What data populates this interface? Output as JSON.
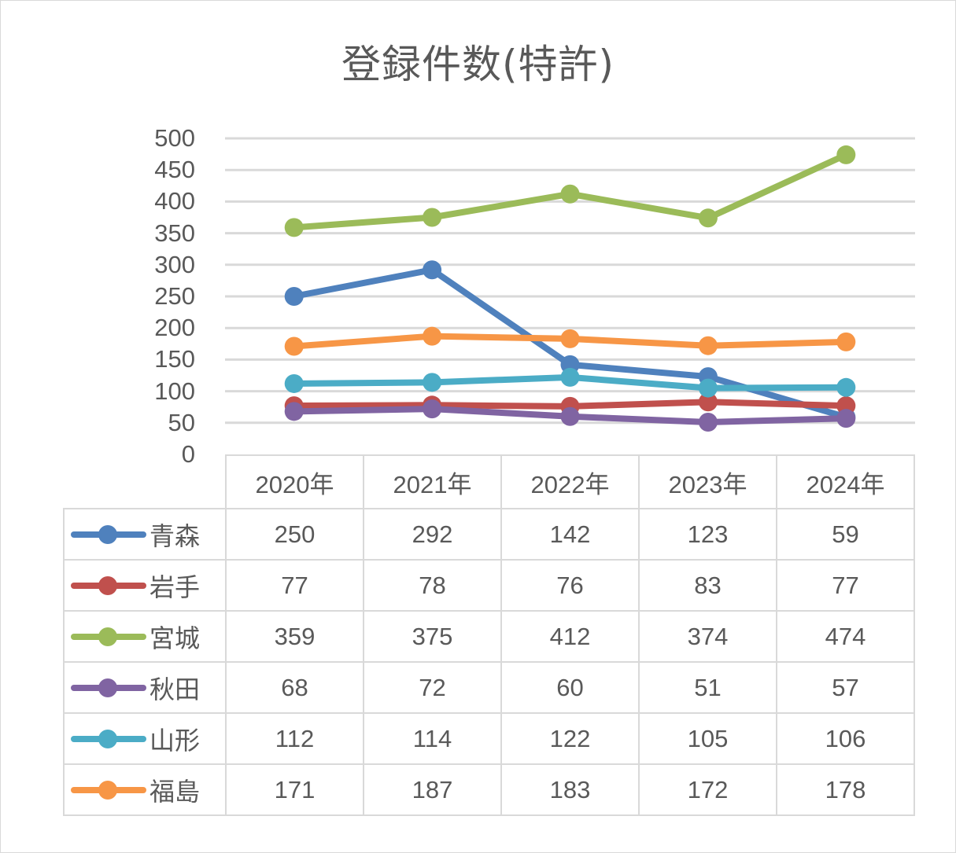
{
  "title": "登録件数(特許)",
  "y_axis": {
    "ticks": [
      "500",
      "450",
      "400",
      "350",
      "300",
      "250",
      "200",
      "150",
      "100",
      "50",
      "0"
    ]
  },
  "x_axis": {
    "categories": [
      "2020年",
      "2021年",
      "2022年",
      "2023年",
      "2024年"
    ]
  },
  "series": [
    {
      "name": "青森",
      "color": "#4f81bd",
      "values": [
        "250",
        "292",
        "142",
        "123",
        "59"
      ]
    },
    {
      "name": "岩手",
      "color": "#c0504d",
      "values": [
        "77",
        "78",
        "76",
        "83",
        "77"
      ]
    },
    {
      "name": "宮城",
      "color": "#9bbb59",
      "values": [
        "359",
        "375",
        "412",
        "374",
        "474"
      ]
    },
    {
      "name": "秋田",
      "color": "#8064a2",
      "values": [
        "68",
        "72",
        "60",
        "51",
        "57"
      ]
    },
    {
      "name": "山形",
      "color": "#4bacc6",
      "values": [
        "112",
        "114",
        "122",
        "105",
        "106"
      ]
    },
    {
      "name": "福島",
      "color": "#f79646",
      "values": [
        "171",
        "187",
        "183",
        "172",
        "178"
      ]
    }
  ],
  "chart_data": {
    "type": "line",
    "title": "登録件数(特許)",
    "xlabel": "",
    "ylabel": "",
    "ylim": [
      0,
      500
    ],
    "yticks": [
      0,
      50,
      100,
      150,
      200,
      250,
      300,
      350,
      400,
      450,
      500
    ],
    "grid": true,
    "legend_position": "data-table (bottom)",
    "categories": [
      "2020年",
      "2021年",
      "2022年",
      "2023年",
      "2024年"
    ],
    "series": [
      {
        "name": "青森",
        "color": "#4f81bd",
        "values": [
          250,
          292,
          142,
          123,
          59
        ]
      },
      {
        "name": "岩手",
        "color": "#c0504d",
        "values": [
          77,
          78,
          76,
          83,
          77
        ]
      },
      {
        "name": "宮城",
        "color": "#9bbb59",
        "values": [
          359,
          375,
          412,
          374,
          474
        ]
      },
      {
        "name": "秋田",
        "color": "#8064a2",
        "values": [
          68,
          72,
          60,
          51,
          57
        ]
      },
      {
        "name": "山形",
        "color": "#4bacc6",
        "values": [
          112,
          114,
          122,
          105,
          106
        ]
      },
      {
        "name": "福島",
        "color": "#f79646",
        "values": [
          171,
          187,
          183,
          172,
          178
        ]
      }
    ]
  }
}
